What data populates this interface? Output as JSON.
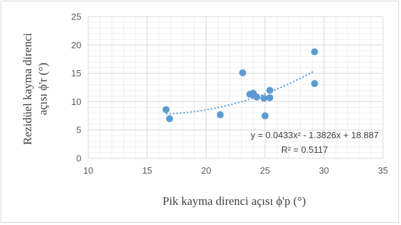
{
  "chart_data": {
    "type": "scatter",
    "title": "",
    "xlabel": "Pik kayma direnci açısı ϕ'p (°)",
    "ylabel_line1": "Rezidüel kayma direnci",
    "ylabel_line2": "açısı ϕ'r (°)",
    "xlim": [
      10,
      35
    ],
    "ylim": [
      0,
      25
    ],
    "x_ticks": [
      10,
      15,
      20,
      25,
      30,
      35
    ],
    "y_ticks": [
      0,
      5,
      10,
      15,
      20,
      25
    ],
    "x_tick_labels": [
      "10",
      "15",
      "20",
      "25",
      "30",
      "35"
    ],
    "y_tick_labels": [
      "0",
      "5",
      "10",
      "15",
      "20",
      "25"
    ],
    "grid": true,
    "series": [
      {
        "color": "#5b9bd5",
        "points": [
          {
            "x": 16.6,
            "y": 8.6
          },
          {
            "x": 16.9,
            "y": 7.0
          },
          {
            "x": 21.2,
            "y": 7.7
          },
          {
            "x": 23.1,
            "y": 15.1
          },
          {
            "x": 23.7,
            "y": 11.3
          },
          {
            "x": 24.0,
            "y": 11.5
          },
          {
            "x": 24.1,
            "y": 11.1
          },
          {
            "x": 24.3,
            "y": 10.8
          },
          {
            "x": 24.9,
            "y": 10.6
          },
          {
            "x": 25.0,
            "y": 7.5
          },
          {
            "x": 25.4,
            "y": 12.0
          },
          {
            "x": 25.4,
            "y": 10.7
          },
          {
            "x": 29.2,
            "y": 18.8
          },
          {
            "x": 29.2,
            "y": 13.2
          }
        ]
      }
    ],
    "trendline": {
      "type": "polynomial",
      "coefficients": [
        0.0433,
        -1.3826,
        18.887
      ],
      "x_range": [
        16.6,
        29.2
      ],
      "color": "#5b9bd5",
      "equation_label": "y = 0.0433x² - 1.3826x + 18.887",
      "r2_label": "R² = 0.5117"
    }
  }
}
